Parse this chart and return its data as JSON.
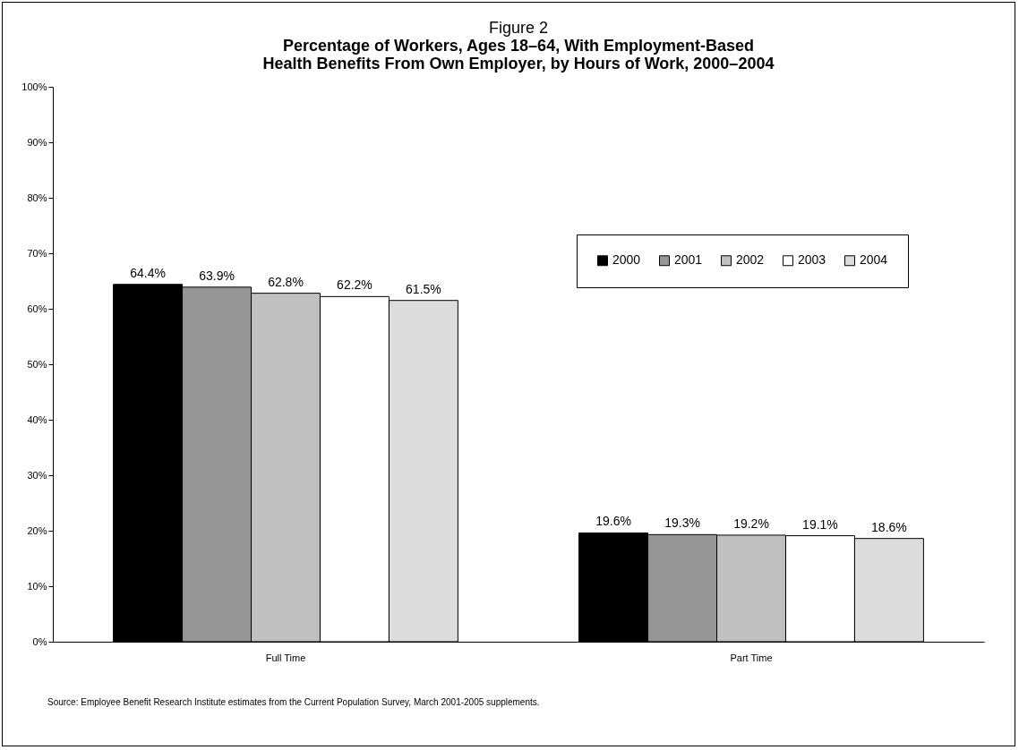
{
  "chart_data": {
    "type": "bar",
    "title": "Figure 2",
    "subtitle": "Percentage of Workers, Ages 18–64, With Employment-Based Health Benefits From Own Employer, by Hours of Work, 2000–2004",
    "categories": [
      "Full Time",
      "Part Time"
    ],
    "series": [
      {
        "name": "2000",
        "color": "#000000",
        "values": [
          64.4,
          19.6
        ]
      },
      {
        "name": "2001",
        "color": "#969696",
        "values": [
          63.9,
          19.3
        ]
      },
      {
        "name": "2002",
        "color": "#c0c0c0",
        "values": [
          62.8,
          19.2
        ]
      },
      {
        "name": "2003",
        "color": "#ffffff",
        "values": [
          62.2,
          19.1
        ]
      },
      {
        "name": "2004",
        "color": "#dcdcdc",
        "values": [
          61.5,
          18.6
        ]
      }
    ],
    "ylim": [
      0,
      100
    ],
    "yticks": [
      {
        "value": 0,
        "label": "0%"
      },
      {
        "value": 10,
        "label": "10%"
      },
      {
        "value": 20,
        "label": "20%"
      },
      {
        "value": 30,
        "label": "30%"
      },
      {
        "value": 40,
        "label": "40%"
      },
      {
        "value": 50,
        "label": "50%"
      },
      {
        "value": 60,
        "label": "60%"
      },
      {
        "value": 70,
        "label": "70%"
      },
      {
        "value": 80,
        "label": "80%"
      },
      {
        "value": 90,
        "label": "90%"
      },
      {
        "value": 100,
        "label": "100%"
      }
    ],
    "value_labels": [
      [
        "64.4%",
        "19.6%"
      ],
      [
        "63.9%",
        "19.3%"
      ],
      [
        "62.8%",
        "19.2%"
      ],
      [
        "62.2%",
        "19.1%"
      ],
      [
        "61.5%",
        "18.6%"
      ]
    ],
    "grid": false,
    "legend": "right",
    "annotations": [
      "Source: Employee Benefit Research Institute estimates from the Current Population Survey, March 2001-2005 supplements."
    ]
  }
}
